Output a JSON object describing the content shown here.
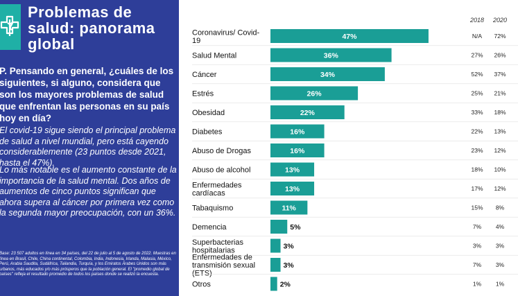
{
  "panel": {
    "title": "Problemas de salud: panorama global",
    "question": "P. Pensando en general, ¿cuáles de los siguientes, si alguno, considera que son los mayores problemas de salud que enfrentan las personas en su país hoy en día?",
    "body1": "El covid-19 sigue siendo el principal problema de salud a nivel mundial, pero está cayendo considerablemente (23 puntos desde 2021, hasta el 47%).",
    "body2": "Lo más notable es el aumento constante de la importancia de la salud mental. Dos años de aumentos de cinco puntos significan que ahora supera al cáncer por primera vez como la segunda mayor preocupación, con un 36%.",
    "footnote": "Base: 23 507 adultos en línea en 34 países, del 22 de julio al 5 de agosto de 2022. Muestras en línea en Brasil, Chile, China continental, Colombia, India, Indonesia, Irlanda, Malasia, México, Perú, Arabia Saudita, Sudáfrica, Tailandia, Turquía, y los Emiratos Árabes Unidos son más urbanos, más educados y/o más prósperos que la población general. El \"promedio global de países\" refleja el resultado promedio de todos los países donde se realizó la encuesta.",
    "colors": {
      "panel_bg": "#2e3e99",
      "logo_bg": "#1fb0a6"
    },
    "logo_icon": "medical-cross-icon"
  },
  "chart_data": {
    "type": "bar",
    "orientation": "horizontal",
    "bar_color": "#1a9e96",
    "categories": [
      [
        "Coronavirus/ Covid-",
        "19"
      ],
      [
        "Salud Mental"
      ],
      [
        "Cáncer"
      ],
      [
        "Estrés"
      ],
      [
        "Obesidad"
      ],
      [
        "Diabetes"
      ],
      [
        "Abuso de Drogas"
      ],
      [
        "Abuso de alcohol"
      ],
      [
        "Enfermedades",
        "cardíacas"
      ],
      [
        "Tabaquismo"
      ],
      [
        "Demencia"
      ],
      [
        "Superbacterias",
        "hospitalarias"
      ],
      [
        "Enfermedades de",
        "transmisión sexual",
        "(ETS)"
      ],
      [
        "Otros"
      ]
    ],
    "values": [
      47,
      36,
      34,
      26,
      22,
      16,
      16,
      13,
      13,
      11,
      5,
      3,
      3,
      2
    ],
    "value_labels": [
      "47%",
      "36%",
      "34%",
      "26%",
      "22%",
      "16%",
      "16%",
      "13%",
      "13%",
      "11%",
      "5%",
      "3%",
      "3%",
      "2%"
    ],
    "xlim": [
      0,
      60
    ],
    "columns": [
      {
        "header": "2018",
        "values": [
          "N/A",
          "27%",
          "52%",
          "25%",
          "33%",
          "22%",
          "23%",
          "18%",
          "17%",
          "15%",
          "7%",
          "3%",
          "7%",
          "1%"
        ]
      },
      {
        "header": "2020",
        "values": [
          "72%",
          "26%",
          "37%",
          "21%",
          "18%",
          "13%",
          "12%",
          "10%",
          "12%",
          "8%",
          "4%",
          "3%",
          "3%",
          "1%"
        ]
      }
    ],
    "grid": false,
    "legend": "none"
  }
}
